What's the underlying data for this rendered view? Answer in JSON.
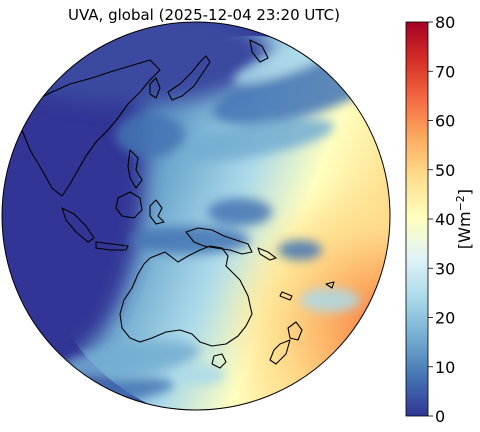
{
  "title": "UVA, global (2025-12-04 23:20 UTC)",
  "colorbar": {
    "min": 0,
    "max": 80,
    "ticks": [
      "0",
      "10",
      "20",
      "30",
      "40",
      "50",
      "60",
      "70",
      "80"
    ],
    "unit_prefix": "[Wm",
    "unit_exponent": "−2",
    "unit_suffix": "]",
    "colormap": [
      "#313695",
      "#4575b4",
      "#74add1",
      "#abd9e9",
      "#e0f3f8",
      "#ffffbf",
      "#fee090",
      "#fdae61",
      "#f46d43",
      "#d73027",
      "#a50026"
    ]
  },
  "map": {
    "projection": "orthographic",
    "region": "Asia-Pacific / Australia",
    "coastline_color": "#000000"
  }
}
